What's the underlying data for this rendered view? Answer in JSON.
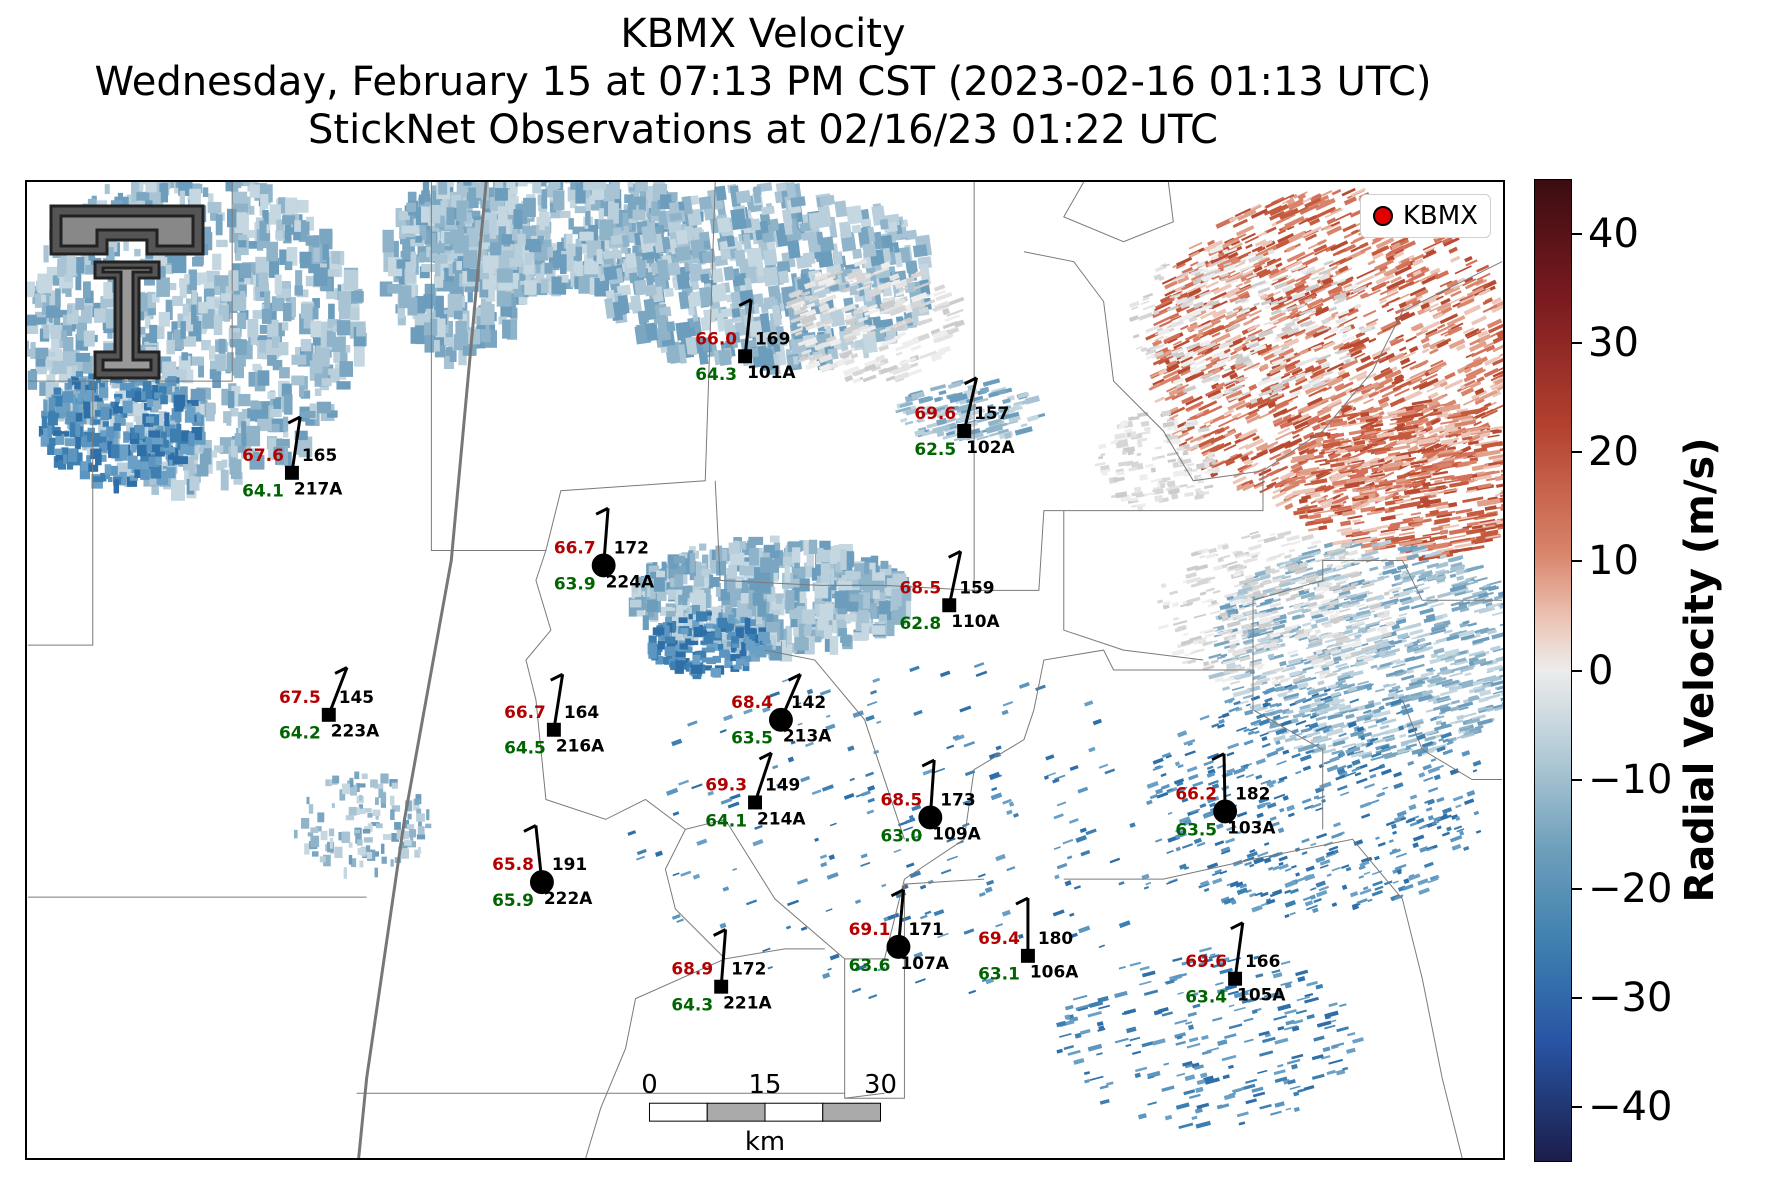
{
  "title": {
    "line1": "KBMX Velocity",
    "line2": "Wednesday, February 15 at 07:13 PM CST (2023-02-16 01:13 UTC)",
    "line3": "StickNet Observations at 02/16/23 01:22 UTC"
  },
  "legend": {
    "label": "KBMX",
    "marker_color": "#e00000"
  },
  "colorbar": {
    "title": "Radial Velocity (m/s)",
    "ticks": [
      "40",
      "30",
      "20",
      "10",
      "0",
      "−10",
      "−20",
      "−30",
      "−40"
    ],
    "range": [
      -45,
      45
    ]
  },
  "scalebar": {
    "ticks": [
      "0",
      "15",
      "30"
    ],
    "unit": "km"
  },
  "logo": {
    "name": "texas-tech-double-t-logo"
  },
  "colors": {
    "temperature": "#b30000",
    "dewpoint": "#006400",
    "negative_velocity": "#3d7fb0",
    "positive_velocity": "#c65a3c"
  },
  "stations": [
    {
      "id": "101A",
      "temp": "66.0",
      "dew": "64.3",
      "dir": "169",
      "marker": "square"
    },
    {
      "id": "102A",
      "temp": "69.6",
      "dew": "62.5",
      "dir": "157",
      "marker": "square"
    },
    {
      "id": "217A",
      "temp": "67.6",
      "dew": "64.1",
      "dir": "165",
      "marker": "square"
    },
    {
      "id": "224A",
      "temp": "66.7",
      "dew": "63.9",
      "dir": "172",
      "marker": "circle"
    },
    {
      "id": "110A",
      "temp": "68.5",
      "dew": "62.8",
      "dir": "159",
      "marker": "square"
    },
    {
      "id": "223A",
      "temp": "67.5",
      "dew": "64.2",
      "dir": "145",
      "marker": "square"
    },
    {
      "id": "216A",
      "temp": "66.7",
      "dew": "64.5",
      "dir": "164",
      "marker": "square"
    },
    {
      "id": "213A",
      "temp": "68.4",
      "dew": "63.5",
      "dir": "142",
      "marker": "circle"
    },
    {
      "id": "214A",
      "temp": "69.3",
      "dew": "64.1",
      "dir": "149",
      "marker": "square"
    },
    {
      "id": "109A",
      "temp": "68.5",
      "dew": "63.0",
      "dir": "173",
      "marker": "circle"
    },
    {
      "id": "103A",
      "temp": "66.2",
      "dew": "63.5",
      "dir": "182",
      "marker": "circle"
    },
    {
      "id": "222A",
      "temp": "65.8",
      "dew": "65.9",
      "dir": "191",
      "marker": "circle"
    },
    {
      "id": "107A",
      "temp": "69.1",
      "dew": "63.6",
      "dir": "171",
      "marker": "circle"
    },
    {
      "id": "106A",
      "temp": "69.4",
      "dew": "63.1",
      "dir": "180",
      "marker": "square"
    },
    {
      "id": "105A",
      "temp": "69.6",
      "dew": "63.4",
      "dir": "166",
      "marker": "square"
    },
    {
      "id": "221A",
      "temp": "68.9",
      "dew": "64.3",
      "dir": "172",
      "marker": "square"
    }
  ]
}
